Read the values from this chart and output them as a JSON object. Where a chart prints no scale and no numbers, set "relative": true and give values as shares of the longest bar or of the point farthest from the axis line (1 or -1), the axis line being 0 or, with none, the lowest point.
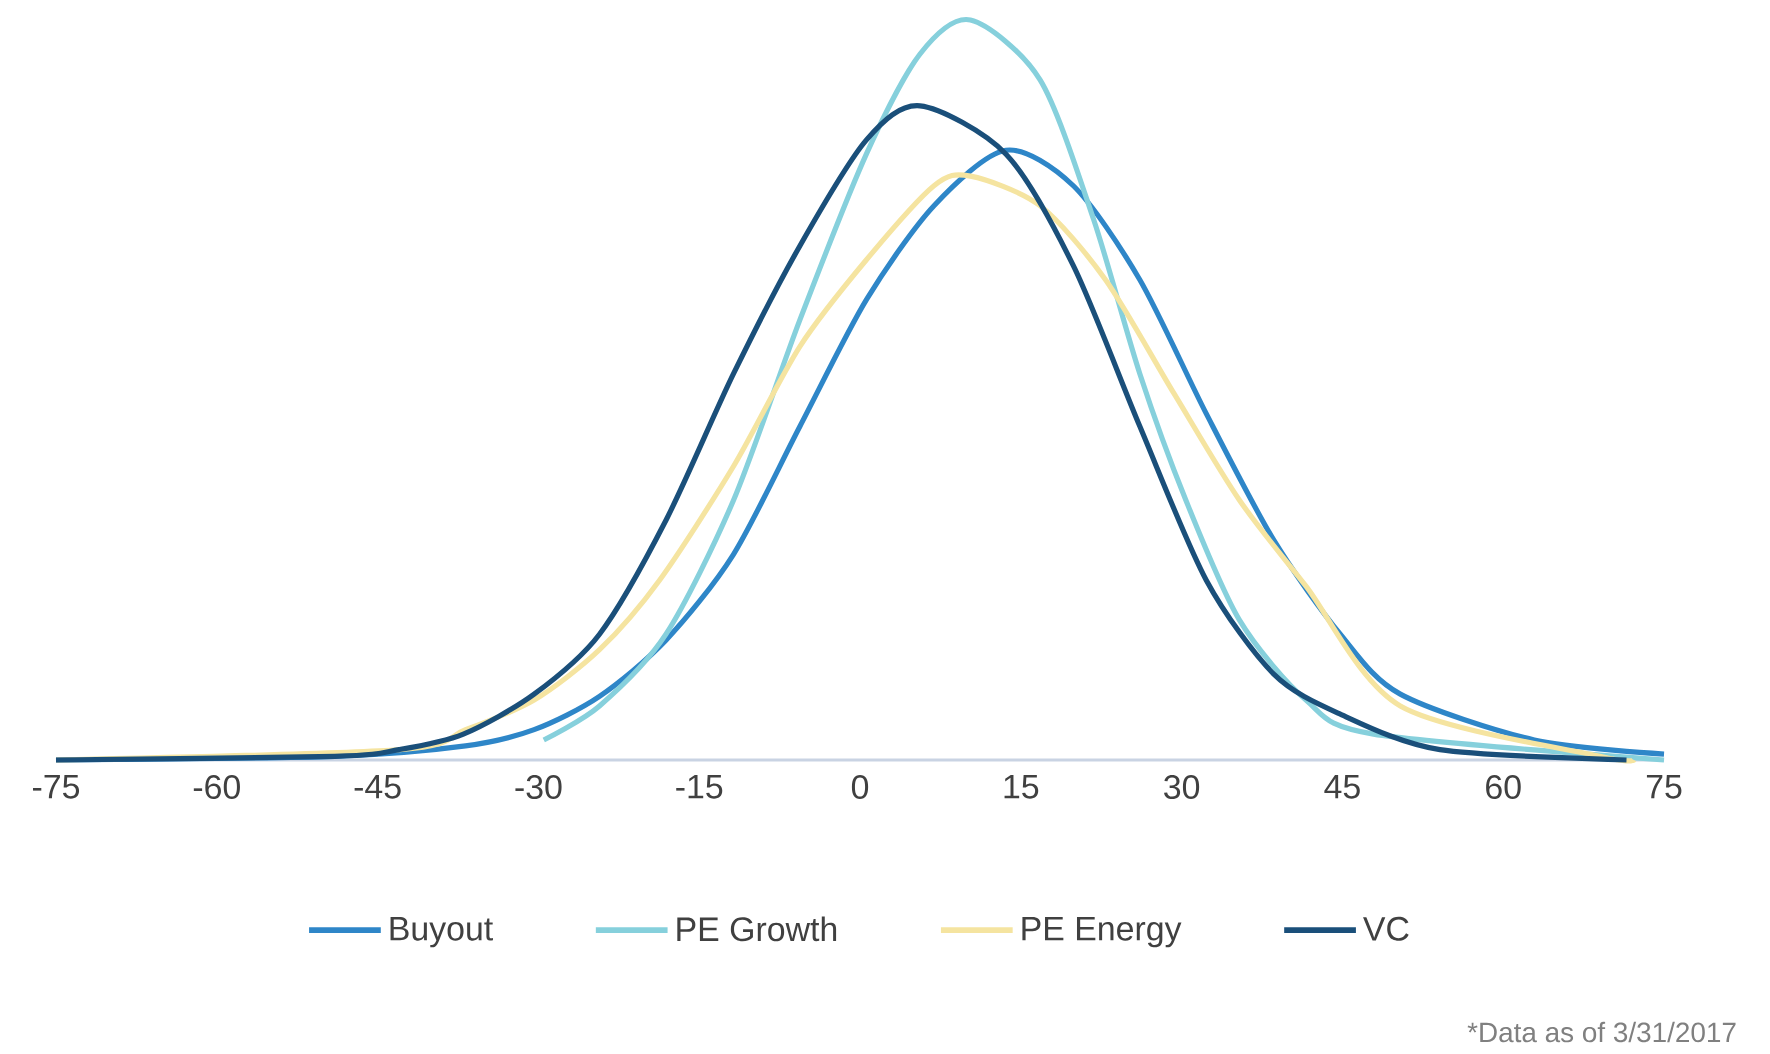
{
  "chart_data": {
    "type": "line",
    "relative": true,
    "xlim": [
      -75,
      75
    ],
    "xticks": [
      -75,
      -60,
      -45,
      -30,
      -15,
      0,
      15,
      30,
      45,
      60,
      75
    ],
    "legend": "bottom",
    "grid": false,
    "marker": "none",
    "line_style": "solid",
    "annotations": [
      "*Data as of 3/31/2017"
    ],
    "series": [
      {
        "name": "Buyout",
        "color": "#2e86c8",
        "x": [
          -75,
          -49,
          -36.8,
          -30.4,
          -24.3,
          -18.1,
          -11.8,
          -5.6,
          0.6,
          6.9,
          13.6,
          19.9,
          26.1,
          32.3,
          38.6,
          44.8,
          50.4,
          62.9,
          75
        ],
        "values": [
          0,
          0.005,
          0.019,
          0.041,
          0.086,
          0.162,
          0.278,
          0.451,
          0.622,
          0.749,
          0.824,
          0.776,
          0.649,
          0.468,
          0.297,
          0.17,
          0.089,
          0.027,
          0.008
        ]
      },
      {
        "name": "PE Growth",
        "color": "#86d0dc",
        "x": [
          -29.5,
          -24.3,
          -18.1,
          -11.8,
          -5.6,
          0.6,
          5.6,
          10.3,
          16.8,
          21.8,
          26.1,
          30.4,
          35.4,
          41.6,
          47.9,
          75
        ],
        "values": [
          0.027,
          0.073,
          0.17,
          0.351,
          0.595,
          0.819,
          0.954,
          1,
          0.919,
          0.73,
          0.522,
          0.351,
          0.189,
          0.081,
          0.035,
          0
        ]
      },
      {
        "name": "PE Energy",
        "color": "#f5e4a0",
        "x": [
          -75,
          -42.9,
          -36.8,
          -30.4,
          -24.3,
          -18.7,
          -11.8,
          -5.6,
          0.6,
          6.9,
          10.3,
          16.8,
          22.9,
          29.3,
          35.4,
          41.6,
          50.4,
          69,
          72.2
        ],
        "values": [
          0,
          0.014,
          0.041,
          0.081,
          0.149,
          0.243,
          0.397,
          0.559,
          0.676,
          0.776,
          0.789,
          0.749,
          0.649,
          0.495,
          0.351,
          0.235,
          0.073,
          0.005,
          0
        ]
      },
      {
        "name": "VC",
        "color": "#1a4f7a",
        "x": [
          -75,
          -49,
          -43,
          -37,
          -30.4,
          -24.3,
          -18.1,
          -11.8,
          -5.6,
          0.6,
          5.6,
          13.6,
          19.9,
          26.1,
          32.3,
          38.6,
          44.8,
          54.1,
          71.5
        ],
        "values": [
          0,
          0.005,
          0.014,
          0.035,
          0.089,
          0.17,
          0.324,
          0.522,
          0.695,
          0.838,
          0.884,
          0.819,
          0.668,
          0.451,
          0.243,
          0.116,
          0.062,
          0.014,
          0
        ]
      }
    ]
  }
}
